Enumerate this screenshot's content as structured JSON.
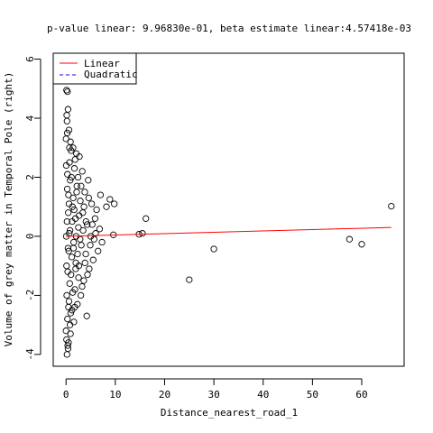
{
  "chart_data": {
    "type": "scatter",
    "title": "p-value linear: 9.96830e-01, beta estimate linear:4.57418e-03",
    "xlabel": "Distance_nearest_road_1",
    "ylabel": "Volume of grey matter in Temporal Pole (right)",
    "xlim": [
      -2.6,
      68.6
    ],
    "ylim": [
      -4.4,
      6.2
    ],
    "x_ticks": [
      0,
      10,
      20,
      30,
      40,
      50,
      60
    ],
    "y_ticks": [
      -4,
      -2,
      0,
      2,
      4,
      6
    ],
    "grid": false,
    "legend": {
      "position": "top-left",
      "entries": [
        {
          "label": "Linear",
          "color": "#ff0000",
          "style": "solid"
        },
        {
          "label": "Quadratic",
          "color": "#0000ff",
          "style": "dashed"
        }
      ]
    },
    "point_marker": "open-circle",
    "points": [
      {
        "x": 66.0,
        "y": 1.02
      },
      {
        "x": 57.5,
        "y": -0.1
      },
      {
        "x": 60.0,
        "y": -0.27
      },
      {
        "x": 30.0,
        "y": -0.43
      },
      {
        "x": 25.0,
        "y": -1.47
      },
      {
        "x": 16.2,
        "y": 0.6
      },
      {
        "x": 15.5,
        "y": 0.1
      },
      {
        "x": 14.8,
        "y": 0.07
      },
      {
        "x": 9.8,
        "y": 1.1
      },
      {
        "x": 9.6,
        "y": 0.05
      },
      {
        "x": 8.9,
        "y": 1.25
      },
      {
        "x": 8.2,
        "y": 1.0
      },
      {
        "x": 7.3,
        "y": -0.2
      },
      {
        "x": 7.0,
        "y": 1.4
      },
      {
        "x": 6.8,
        "y": 0.25
      },
      {
        "x": 6.5,
        "y": -0.5
      },
      {
        "x": 6.2,
        "y": 0.9
      },
      {
        "x": 5.9,
        "y": 0.6
      },
      {
        "x": 5.5,
        "y": -0.8
      },
      {
        "x": 5.2,
        "y": 1.1
      },
      {
        "x": 5.0,
        "y": 0.0
      },
      {
        "x": 4.7,
        "y": -1.1
      },
      {
        "x": 4.5,
        "y": 1.9
      },
      {
        "x": 4.3,
        "y": 0.4
      },
      {
        "x": 4.2,
        "y": -2.7
      },
      {
        "x": 4.0,
        "y": -0.6
      },
      {
        "x": 3.8,
        "y": 1.5
      },
      {
        "x": 3.6,
        "y": -1.5
      },
      {
        "x": 3.4,
        "y": 0.8
      },
      {
        "x": 3.3,
        "y": 2.2
      },
      {
        "x": 3.1,
        "y": -0.3
      },
      {
        "x": 3.0,
        "y": -2.0
      },
      {
        "x": 2.9,
        "y": 1.2
      },
      {
        "x": 2.7,
        "y": 2.7
      },
      {
        "x": 2.6,
        "y": -1.0
      },
      {
        "x": 2.5,
        "y": 0.3
      },
      {
        "x": 2.3,
        "y": -2.3
      },
      {
        "x": 2.2,
        "y": 1.7
      },
      {
        "x": 2.1,
        "y": 2.8
      },
      {
        "x": 2.0,
        "y": -0.9
      },
      {
        "x": 1.9,
        "y": 0.6
      },
      {
        "x": 1.8,
        "y": -1.8
      },
      {
        "x": 1.7,
        "y": 2.3
      },
      {
        "x": 1.6,
        "y": -2.9
      },
      {
        "x": 1.5,
        "y": -0.4
      },
      {
        "x": 1.4,
        "y": 3.0
      },
      {
        "x": 1.3,
        "y": 1.0
      },
      {
        "x": 1.2,
        "y": -2.5
      },
      {
        "x": 1.1,
        "y": 2.0
      },
      {
        "x": 1.0,
        "y": -1.3
      },
      {
        "x": 0.9,
        "y": 3.2
      },
      {
        "x": 0.8,
        "y": -3.0
      },
      {
        "x": 0.8,
        "y": 0.2
      },
      {
        "x": 0.7,
        "y": 2.5
      },
      {
        "x": 0.6,
        "y": -2.2
      },
      {
        "x": 0.6,
        "y": 3.6
      },
      {
        "x": 0.5,
        "y": -3.6
      },
      {
        "x": 0.5,
        "y": 1.4
      },
      {
        "x": 0.4,
        "y": 4.3
      },
      {
        "x": 0.4,
        "y": -3.8
      },
      {
        "x": 0.3,
        "y": 4.9
      },
      {
        "x": 0.3,
        "y": -2.8
      },
      {
        "x": 0.2,
        "y": 3.9
      },
      {
        "x": 0.2,
        "y": -4.0
      },
      {
        "x": 0.1,
        "y": 4.95
      },
      {
        "x": 0.1,
        "y": -3.5
      },
      {
        "x": 0.0,
        "y": 3.3
      },
      {
        "x": 0.0,
        "y": -3.2
      },
      {
        "x": 0.05,
        "y": 2.4
      },
      {
        "x": 0.15,
        "y": -2.0
      },
      {
        "x": 0.25,
        "y": 1.6
      },
      {
        "x": 0.35,
        "y": -1.2
      },
      {
        "x": 0.45,
        "y": 0.8
      },
      {
        "x": 0.55,
        "y": -0.5
      },
      {
        "x": 0.65,
        "y": 0.1
      },
      {
        "x": 0.75,
        "y": -1.6
      },
      {
        "x": 0.85,
        "y": 1.9
      },
      {
        "x": 0.95,
        "y": -2.6
      },
      {
        "x": 1.05,
        "y": 2.9
      },
      {
        "x": 1.15,
        "y": -0.7
      },
      {
        "x": 1.25,
        "y": 0.5
      },
      {
        "x": 1.35,
        "y": -1.9
      },
      {
        "x": 1.45,
        "y": 1.3
      },
      {
        "x": 1.55,
        "y": -0.2
      },
      {
        "x": 1.65,
        "y": 0.9
      },
      {
        "x": 1.75,
        "y": -2.4
      },
      {
        "x": 1.85,
        "y": 2.6
      },
      {
        "x": 1.95,
        "y": -1.1
      },
      {
        "x": 2.05,
        "y": 0.0
      },
      {
        "x": 2.15,
        "y": 1.5
      },
      {
        "x": 2.35,
        "y": -0.6
      },
      {
        "x": 2.45,
        "y": 2.0
      },
      {
        "x": 2.55,
        "y": -1.4
      },
      {
        "x": 2.65,
        "y": 0.7
      },
      {
        "x": 2.85,
        "y": -0.1
      },
      {
        "x": 3.05,
        "y": 1.7
      },
      {
        "x": 3.25,
        "y": -1.7
      },
      {
        "x": 3.45,
        "y": 0.2
      },
      {
        "x": 3.65,
        "y": 1.0
      },
      {
        "x": 3.85,
        "y": -0.9
      },
      {
        "x": 4.05,
        "y": 0.5
      },
      {
        "x": 4.35,
        "y": -1.3
      },
      {
        "x": 4.6,
        "y": 1.3
      },
      {
        "x": 4.9,
        "y": -0.3
      },
      {
        "x": 5.3,
        "y": 0.4
      },
      {
        "x": 5.7,
        "y": -0.1
      },
      {
        "x": 6.0,
        "y": 0.1
      },
      {
        "x": 0.05,
        "y": 0.0
      },
      {
        "x": 0.2,
        "y": 0.5
      },
      {
        "x": 0.4,
        "y": -0.4
      },
      {
        "x": 0.6,
        "y": 1.1
      },
      {
        "x": 0.1,
        "y": -1.0
      },
      {
        "x": 0.3,
        "y": 2.1
      },
      {
        "x": 0.5,
        "y": -2.4
      },
      {
        "x": 0.7,
        "y": 3.0
      },
      {
        "x": 0.9,
        "y": -3.3
      },
      {
        "x": 0.15,
        "y": 4.1
      },
      {
        "x": 0.35,
        "y": -3.7
      },
      {
        "x": 0.25,
        "y": 3.5
      }
    ],
    "linear_fit": {
      "x": [
        0,
        66
      ],
      "y": [
        0.0,
        0.3
      ]
    }
  }
}
